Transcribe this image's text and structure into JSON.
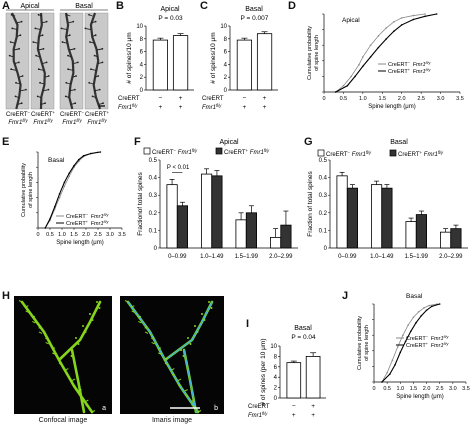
{
  "panel_labels": [
    "A",
    "B",
    "C",
    "D",
    "E",
    "F",
    "G",
    "H",
    "I",
    "J"
  ],
  "A": {
    "titles": [
      "Apical",
      "Basal"
    ],
    "genotypes": [
      {
        "cre": "CreERT−",
        "fmr": "Fmr1fl/y"
      },
      {
        "cre": "CreERT+",
        "fmr": "Fmr1fl/y"
      },
      {
        "cre": "CreERT−",
        "fmr": "Fmr1fl/y"
      },
      {
        "cre": "CreERT+",
        "fmr": "Fmr1fl/y"
      }
    ]
  },
  "chart_data": [
    {
      "id": "B",
      "type": "bar",
      "title": "Apical",
      "ylabel": "# of spines/10 μm",
      "ylim": [
        0,
        10
      ],
      "yticks": [
        0,
        2,
        4,
        6,
        8,
        10
      ],
      "values": [
        7.8,
        8.5
      ],
      "errors": [
        0.3,
        0.3
      ],
      "fills": [
        "#ffffff",
        "#ffffff"
      ],
      "annotation": "P = 0.03",
      "rows": [
        {
          "label": "CreERT",
          "values": [
            "−",
            "+"
          ]
        },
        {
          "label": "Fmr1fl/y",
          "values": [
            "+",
            "+"
          ]
        }
      ]
    },
    {
      "id": "C",
      "type": "bar",
      "title": "Basal",
      "ylabel": "# of spines/10 μm",
      "ylim": [
        0,
        10
      ],
      "yticks": [
        0,
        2,
        4,
        6,
        8,
        10
      ],
      "values": [
        7.8,
        8.8
      ],
      "errors": [
        0.3,
        0.3
      ],
      "fills": [
        "#ffffff",
        "#ffffff"
      ],
      "annotation": "P = 0.007",
      "rows": [
        {
          "label": "CreERT",
          "values": [
            "−",
            "+"
          ]
        },
        {
          "label": "Fmr1fl/y",
          "values": [
            "+",
            "+"
          ]
        }
      ]
    },
    {
      "id": "D",
      "type": "line",
      "title": "Apical",
      "xlabel": "Spine length (μm)",
      "ylabel": "Cumulative probability of spine length",
      "xlim": [
        0,
        3.5
      ],
      "ylim": [
        0,
        1
      ],
      "xticks": [
        0,
        0.5,
        1,
        1.5,
        2,
        2.5,
        3,
        3.5
      ],
      "xticklabels": [
        "0",
        "0.5",
        "1.0",
        "1.5",
        "2.0",
        "2.5",
        "3.0",
        "3.5"
      ],
      "yticks": [
        0,
        0.2,
        0.4,
        0.6,
        0.8,
        1
      ],
      "series": [
        {
          "name": "CreERT− Fmr1fl/y",
          "color": "#888888",
          "x": [
            0.3,
            0.5,
            0.7,
            0.9,
            1.0,
            1.2,
            1.4,
            1.6,
            1.8,
            2.0,
            2.3,
            2.6
          ],
          "y": [
            0,
            0.08,
            0.2,
            0.35,
            0.45,
            0.6,
            0.72,
            0.82,
            0.9,
            0.95,
            0.98,
            1
          ]
        },
        {
          "name": "CreERT+ Fmr1fl/y",
          "color": "#000000",
          "x": [
            0.3,
            0.6,
            0.8,
            1.0,
            1.2,
            1.4,
            1.6,
            1.8,
            2.0,
            2.3,
            2.6,
            2.9
          ],
          "y": [
            0,
            0.08,
            0.2,
            0.33,
            0.45,
            0.57,
            0.68,
            0.78,
            0.86,
            0.93,
            0.97,
            1
          ]
        }
      ]
    },
    {
      "id": "E",
      "type": "line",
      "title": "Basal",
      "xlabel": "Spine length (μm)",
      "ylabel": "Cumulative probability of spine length",
      "xlim": [
        0,
        3.5
      ],
      "ylim": [
        0,
        1
      ],
      "xticks": [
        0,
        0.5,
        1,
        1.5,
        2,
        2.5,
        3,
        3.5
      ],
      "xticklabels": [
        "0",
        "0.5",
        "1.0",
        "1.5",
        "2.0",
        "2.5",
        "3.0",
        "3.5"
      ],
      "yticks": [
        0,
        0.2,
        0.4,
        0.6,
        0.8,
        1
      ],
      "series": [
        {
          "name": "CreERT− Fmr1fl/y",
          "color": "#888888",
          "x": [
            0.3,
            0.5,
            0.7,
            0.9,
            1.1,
            1.3,
            1.5,
            1.7,
            1.9,
            2.2,
            2.5
          ],
          "y": [
            0,
            0.1,
            0.25,
            0.4,
            0.55,
            0.68,
            0.8,
            0.88,
            0.94,
            0.98,
            1
          ]
        },
        {
          "name": "CreERT+ Fmr1fl/y",
          "color": "#000000",
          "x": [
            0.3,
            0.5,
            0.7,
            0.9,
            1.1,
            1.3,
            1.5,
            1.7,
            1.9,
            2.2,
            2.6
          ],
          "y": [
            0,
            0.12,
            0.28,
            0.45,
            0.6,
            0.72,
            0.82,
            0.9,
            0.95,
            0.98,
            1
          ]
        }
      ]
    },
    {
      "id": "F",
      "type": "bar",
      "title": "Apical",
      "ylabel": "Fractionof total spines",
      "ylim": [
        0,
        0.5
      ],
      "yticks": [
        0,
        0.1,
        0.2,
        0.3,
        0.4,
        0.5
      ],
      "yticklabels": [
        "0",
        "0.1",
        "0.2",
        "0.3",
        "0.4",
        "0.5"
      ],
      "categories": [
        "0–0.99",
        "1.0–1.49",
        "1.5–1.99",
        "2.0–2.99"
      ],
      "series": [
        {
          "name": "CreERT− Fmr1fl/y",
          "fill": "#ffffff",
          "values": [
            0.36,
            0.42,
            0.16,
            0.06
          ],
          "errors": [
            0.03,
            0.03,
            0.04,
            0.05
          ]
        },
        {
          "name": "CreERT+ Fmr1fl/y",
          "fill": "#333333",
          "values": [
            0.24,
            0.41,
            0.2,
            0.13
          ],
          "errors": [
            0.02,
            0.03,
            0.04,
            0.08
          ]
        }
      ],
      "annotation": "P < 0.01"
    },
    {
      "id": "G",
      "type": "bar",
      "title": "Basal",
      "ylabel": "Fraction of total spines",
      "ylim": [
        0,
        0.5
      ],
      "yticks": [
        0,
        0.1,
        0.2,
        0.3,
        0.4,
        0.5
      ],
      "yticklabels": [
        "0",
        "0.1",
        "0.2",
        "0.3",
        "0.4",
        "0.5"
      ],
      "categories": [
        "0–0.99",
        "1.0–1.49",
        "1.5–1.99",
        "2.0–2.99"
      ],
      "series": [
        {
          "name": "CreERT− Fmr1fl/y",
          "fill": "#ffffff",
          "values": [
            0.41,
            0.36,
            0.15,
            0.09
          ],
          "errors": [
            0.02,
            0.02,
            0.02,
            0.02
          ]
        },
        {
          "name": "CreERT+ Fmr1fl/y",
          "fill": "#333333",
          "values": [
            0.34,
            0.34,
            0.19,
            0.11
          ],
          "errors": [
            0.02,
            0.02,
            0.02,
            0.02
          ]
        }
      ]
    },
    {
      "id": "I",
      "type": "bar",
      "title": "Basal",
      "ylabel": "# of spines (per 10 μm)",
      "ylim": [
        0,
        10
      ],
      "yticks": [
        0,
        2,
        4,
        6,
        8,
        10
      ],
      "values": [
        6.8,
        8.0
      ],
      "errors": [
        0.3,
        0.7
      ],
      "fills": [
        "#ffffff",
        "#ffffff"
      ],
      "annotation": "P = 0.04",
      "rows": [
        {
          "label": "CreERT",
          "values": [
            "−",
            "+"
          ]
        },
        {
          "label": "Fmr1fl/y",
          "values": [
            "+",
            "+"
          ]
        }
      ]
    },
    {
      "id": "J",
      "type": "line",
      "title": "Basal",
      "xlabel": "Spine length (μm)",
      "ylabel": "Cumulative probability of spine length",
      "xlim": [
        0,
        3.5
      ],
      "ylim": [
        0,
        1
      ],
      "xticks": [
        0,
        0.5,
        1,
        1.5,
        2,
        2.5,
        3,
        3.5
      ],
      "xticklabels": [
        "0",
        "0.5",
        "1.0",
        "1.5",
        "2.0",
        "2.5",
        "3.0",
        "3.5"
      ],
      "yticks": [
        0,
        0.2,
        0.4,
        0.6,
        0.8,
        1
      ],
      "series": [
        {
          "name": "CreERT− Fmr1fl/y",
          "color": "#888888",
          "x": [
            0.3,
            0.5,
            0.7,
            0.9,
            1.1,
            1.3,
            1.5,
            1.7,
            1.9,
            2.1,
            2.4
          ],
          "y": [
            0,
            0.12,
            0.28,
            0.45,
            0.6,
            0.73,
            0.83,
            0.9,
            0.95,
            0.98,
            1
          ]
        },
        {
          "name": "CreERT+ Fmr1fl/y",
          "color": "#000000",
          "x": [
            0.3,
            0.6,
            0.8,
            1.0,
            1.2,
            1.4,
            1.6,
            1.8,
            2.0,
            2.2,
            2.5
          ],
          "y": [
            0,
            0.1,
            0.22,
            0.38,
            0.52,
            0.65,
            0.76,
            0.85,
            0.92,
            0.97,
            1
          ]
        }
      ]
    }
  ],
  "H": {
    "captions": [
      "Confocal image",
      "Imaris image"
    ],
    "sublabels": [
      "a",
      "b"
    ],
    "colors": {
      "dendrite": "#86d51c",
      "surface": "#3fb1d6",
      "background": "#050505"
    }
  }
}
